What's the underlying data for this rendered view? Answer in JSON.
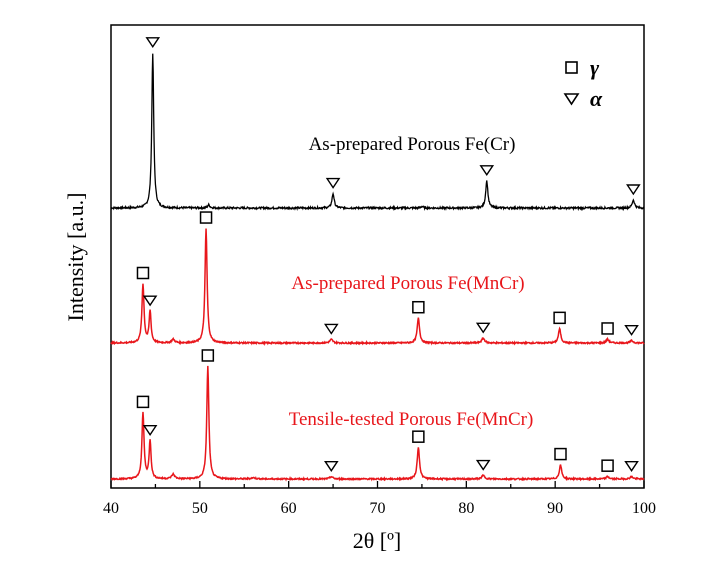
{
  "chart_data": {
    "type": "line",
    "xlabel": "2θ [º]",
    "ylabel": "Intensity [a.u.]",
    "xlim": [
      40,
      100
    ],
    "x_ticks": [
      40,
      50,
      60,
      70,
      80,
      90,
      100
    ],
    "grid": false,
    "legend": {
      "position": "top-right",
      "entries": [
        {
          "marker": "square",
          "label": "γ"
        },
        {
          "marker": "triangle",
          "label": "α"
        }
      ]
    },
    "series": [
      {
        "name": "As-prepared Porous Fe(Cr)",
        "color": "#000000",
        "peaks": [
          {
            "x": 44.7,
            "height": 0.97,
            "width": 0.13,
            "phase": "α",
            "marked": true
          },
          {
            "x": 51.0,
            "height": 0.02,
            "width": 0.15,
            "phase": "",
            "marked": false
          },
          {
            "x": 65.0,
            "height": 0.09,
            "width": 0.15,
            "phase": "α",
            "marked": true
          },
          {
            "x": 75.0,
            "height": 0.01,
            "width": 0.15,
            "phase": "",
            "marked": false
          },
          {
            "x": 82.3,
            "height": 0.17,
            "width": 0.15,
            "phase": "α",
            "marked": true
          },
          {
            "x": 98.8,
            "height": 0.05,
            "width": 0.16,
            "phase": "α",
            "marked": true
          }
        ]
      },
      {
        "name": "As-prepared Porous Fe(MnCr)",
        "color": "#e8161b",
        "peaks": [
          {
            "x": 43.6,
            "height": 0.5,
            "width": 0.14,
            "phase": "γ",
            "marked": true
          },
          {
            "x": 44.4,
            "height": 0.27,
            "width": 0.13,
            "phase": "α",
            "marked": true
          },
          {
            "x": 47.0,
            "height": 0.03,
            "width": 0.2,
            "phase": "",
            "marked": false
          },
          {
            "x": 50.7,
            "height": 0.97,
            "width": 0.14,
            "phase": "γ",
            "marked": true
          },
          {
            "x": 64.8,
            "height": 0.03,
            "width": 0.2,
            "phase": "α",
            "marked": true
          },
          {
            "x": 74.6,
            "height": 0.21,
            "width": 0.16,
            "phase": "γ",
            "marked": true
          },
          {
            "x": 81.9,
            "height": 0.04,
            "width": 0.2,
            "phase": "α",
            "marked": true
          },
          {
            "x": 90.5,
            "height": 0.12,
            "width": 0.16,
            "phase": "γ",
            "marked": true
          },
          {
            "x": 95.9,
            "height": 0.03,
            "width": 0.2,
            "phase": "γ",
            "marked": true
          },
          {
            "x": 98.6,
            "height": 0.02,
            "width": 0.2,
            "phase": "α",
            "marked": true
          }
        ]
      },
      {
        "name": "Tensile-tested Porous Fe(MnCr)",
        "color": "#e8161b",
        "peaks": [
          {
            "x": 43.6,
            "height": 0.57,
            "width": 0.14,
            "phase": "γ",
            "marked": true
          },
          {
            "x": 44.4,
            "height": 0.33,
            "width": 0.13,
            "phase": "α",
            "marked": true
          },
          {
            "x": 47.0,
            "height": 0.04,
            "width": 0.2,
            "phase": "",
            "marked": false
          },
          {
            "x": 50.9,
            "height": 0.97,
            "width": 0.14,
            "phase": "γ",
            "marked": true
          },
          {
            "x": 56.0,
            "height": 0.01,
            "width": 0.3,
            "phase": "",
            "marked": false
          },
          {
            "x": 64.8,
            "height": 0.02,
            "width": 0.2,
            "phase": "α",
            "marked": true
          },
          {
            "x": 74.6,
            "height": 0.27,
            "width": 0.16,
            "phase": "γ",
            "marked": true
          },
          {
            "x": 81.9,
            "height": 0.03,
            "width": 0.2,
            "phase": "α",
            "marked": true
          },
          {
            "x": 90.6,
            "height": 0.12,
            "width": 0.16,
            "phase": "γ",
            "marked": true
          },
          {
            "x": 95.9,
            "height": 0.02,
            "width": 0.2,
            "phase": "γ",
            "marked": true
          },
          {
            "x": 98.6,
            "height": 0.02,
            "width": 0.2,
            "phase": "α",
            "marked": true
          }
        ]
      }
    ]
  }
}
